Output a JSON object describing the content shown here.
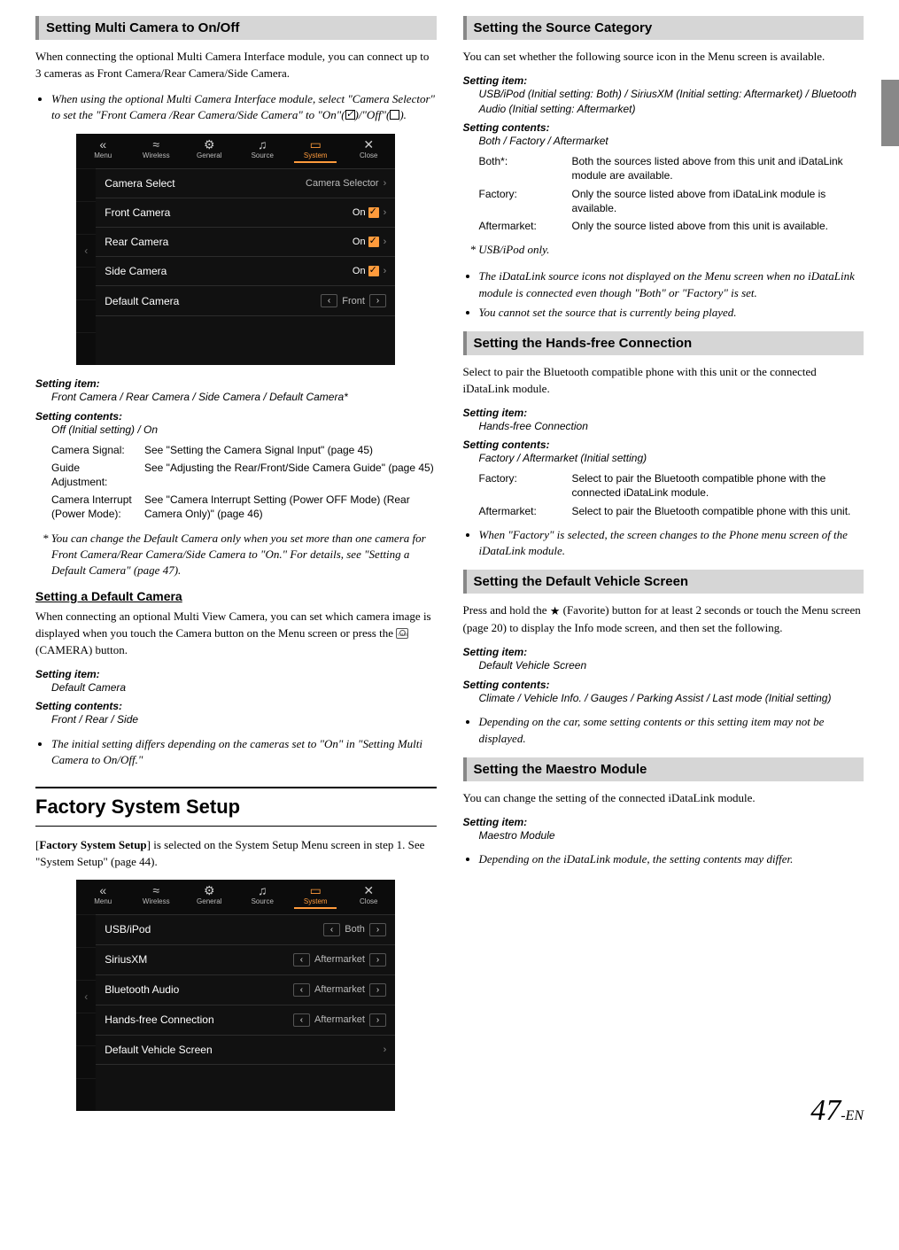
{
  "left": {
    "sec1_title": "Setting Multi Camera to On/Off",
    "sec1_p1": "When connecting the optional Multi Camera Interface module, you can connect up to 3 cameras as Front Camera/Rear Camera/Side Camera.",
    "sec1_note1_pre": "When using the optional Multi Camera Interface module, select \"Camera Selector\" to set the \"Front Camera /Rear Camera/Side Camera\" to \"On\"(",
    "sec1_note1_mid": ")/\"Off\"(",
    "sec1_note1_post": ").",
    "shot1": {
      "top": [
        "Menu",
        "Wireless",
        "General",
        "Source",
        "System",
        "Close"
      ],
      "top_icons": [
        "«",
        "≈",
        "⚙",
        "♫",
        "▭",
        "✕"
      ],
      "active_idx": 4,
      "rows": [
        {
          "label": "Camera Select",
          "right_type": "text",
          "right": "Camera Selector",
          "chev": true
        },
        {
          "label": "Front Camera",
          "right_type": "on",
          "chev": true
        },
        {
          "label": "Rear Camera",
          "right_type": "on",
          "chev": true
        },
        {
          "label": "Side Camera",
          "right_type": "on",
          "chev": true
        },
        {
          "label": "Default Camera",
          "right_type": "stepper",
          "right": "Front"
        }
      ],
      "left_icons": [
        "",
        "",
        "‹",
        "",
        "",
        ""
      ]
    },
    "si1_label": "Setting item:",
    "si1_val": "Front Camera / Rear Camera / Side Camera / Default Camera*",
    "sc1_label": "Setting contents:",
    "sc1_val": "Off (Initial setting) / On",
    "defs1": [
      {
        "t": "Camera Signal:",
        "d": "See \"Setting the Camera Signal Input\" (page 45)"
      },
      {
        "t": "Guide Adjustment:",
        "d": "See \"Adjusting the Rear/Front/Side Camera Guide\" (page 45)"
      },
      {
        "t": "Camera Interrupt (Power Mode):",
        "d": "See \"Camera Interrupt Setting (Power OFF Mode) (Rear Camera Only)\" (page 46)"
      }
    ],
    "foot1": "* You can change the Default Camera only when you set more than one camera for Front Camera/Rear Camera/Side Camera to \"On.\" For details, see \"Setting a Default Camera\" (page 47).",
    "sub1": "Setting a Default Camera",
    "sub1_p_pre": "When connecting an optional Multi View Camera, you can set which camera image is displayed when you touch the Camera button on the Menu screen or press the ",
    "sub1_p_post": " (CAMERA) button.",
    "si2_label": "Setting item:",
    "si2_val": "Default Camera",
    "sc2_label": "Setting contents:",
    "sc2_val": "Front / Rear / Side",
    "note2": "The initial setting differs depending on the cameras set to \"On\" in \"Setting Multi Camera to On/Off.\"",
    "h1": "Factory System Setup",
    "h1_p_pre": "[",
    "h1_p_bold": "Factory System Setup",
    "h1_p_post": "] is selected on the System Setup Menu screen in step 1. See \"System Setup\" (page 44).",
    "shot2": {
      "top": [
        "Menu",
        "Wireless",
        "General",
        "Source",
        "System",
        "Close"
      ],
      "top_icons": [
        "«",
        "≈",
        "⚙",
        "♫",
        "▭",
        "✕"
      ],
      "active_idx": 4,
      "rows": [
        {
          "label": "USB/iPod",
          "right_type": "stepper",
          "right": "Both"
        },
        {
          "label": "SiriusXM",
          "right_type": "stepper",
          "right": "Aftermarket"
        },
        {
          "label": "Bluetooth Audio",
          "right_type": "stepper",
          "right": "Aftermarket"
        },
        {
          "label": "Hands-free Connection",
          "right_type": "stepper",
          "right": "Aftermarket"
        },
        {
          "label": "Default Vehicle Screen",
          "right_type": "text",
          "right": "",
          "chev": true
        }
      ],
      "left_icons": [
        "",
        "",
        "‹",
        "",
        "",
        ""
      ]
    }
  },
  "right": {
    "sec2_title": "Setting the Source Category",
    "sec2_p1": "You can set whether the following source icon in the Menu screen is available.",
    "si3_label": "Setting item:",
    "si3_val": "USB/iPod (Initial setting: Both) / SiriusXM (Initial setting: Aftermarket) / Bluetooth Audio (Initial setting: Aftermarket)",
    "sc3_label": "Setting contents:",
    "sc3_val": "Both / Factory / Aftermarket",
    "defs2": [
      {
        "t": "Both*:",
        "d": "Both the sources listed above from this unit and iDataLink module are available."
      },
      {
        "t": "Factory:",
        "d": "Only the source listed above from iDataLink module is available."
      },
      {
        "t": "Aftermarket:",
        "d": "Only the source listed above from this unit is available."
      }
    ],
    "foot2": "* USB/iPod only.",
    "notes2": [
      "The iDataLink source icons not displayed on the Menu screen when no iDataLink module is connected even though \"Both\" or \"Factory\" is set.",
      "You cannot set the source that is currently being played."
    ],
    "sec3_title": "Setting the Hands-free Connection",
    "sec3_p1": "Select to pair the Bluetooth compatible phone with this unit or the connected iDataLink module.",
    "si4_label": "Setting item:",
    "si4_val": "Hands-free Connection",
    "sc4_label": "Setting contents:",
    "sc4_val": "Factory / Aftermarket (Initial setting)",
    "defs3": [
      {
        "t": "Factory:",
        "d": "Select to pair the Bluetooth compatible phone with the connected iDataLink module."
      },
      {
        "t": "Aftermarket:",
        "d": "Select to pair the Bluetooth compatible phone with this unit."
      }
    ],
    "note3": "When \"Factory\" is selected, the screen changes to the Phone menu screen of the iDataLink module.",
    "sec4_title": "Setting the Default Vehicle Screen",
    "sec4_p1_pre": "Press and hold the ",
    "sec4_p1_post": " (Favorite) button for at least 2 seconds or touch the Menu screen (page 20) to display the Info mode screen, and then set the following.",
    "si5_label": "Setting item:",
    "si5_val": "Default Vehicle Screen",
    "sc5_label": "Setting contents:",
    "sc5_val": "Climate / Vehicle Info. / Gauges / Parking Assist / Last mode (Initial setting)",
    "note4": "Depending on the car, some setting contents or this setting item may not be displayed.",
    "sec5_title": "Setting the Maestro Module",
    "sec5_p1": "You can change the setting of the connected iDataLink module.",
    "si6_label": "Setting item:",
    "si6_val": "Maestro Module",
    "note5": "Depending on the iDataLink module, the setting contents may differ."
  },
  "pagenum": {
    "big": "47",
    "suf": "-EN"
  }
}
